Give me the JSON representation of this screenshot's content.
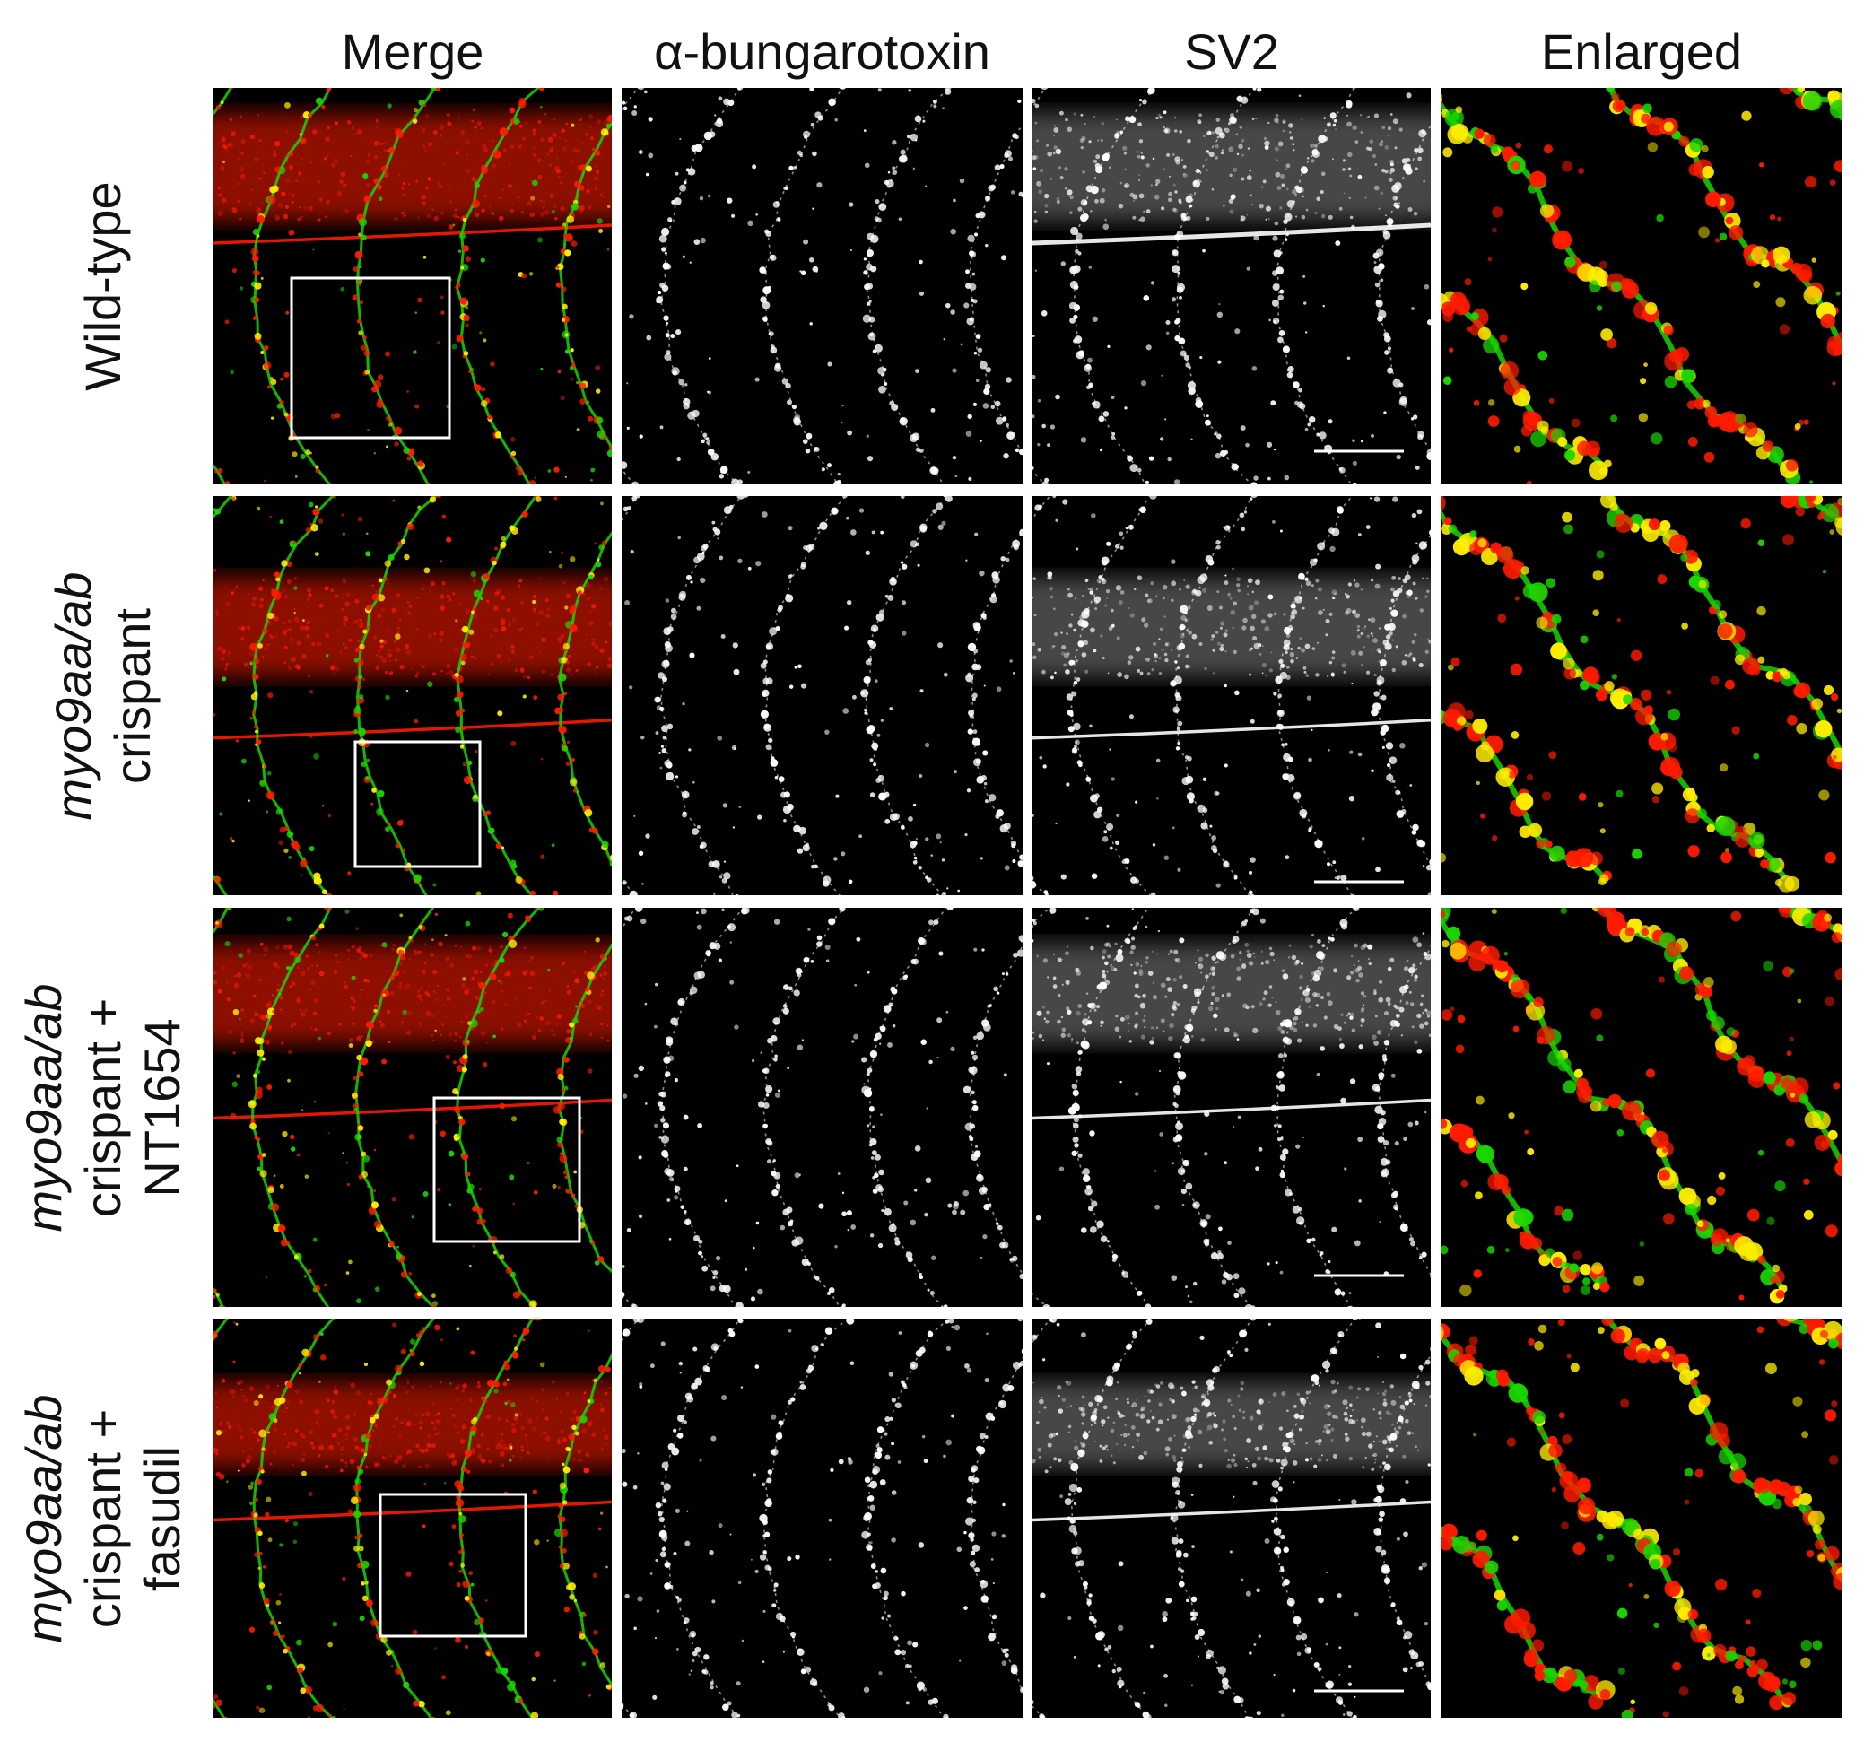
{
  "columns": [
    "Merge",
    "α-bungarotoxin",
    "SV2",
    "Enlarged"
  ],
  "rows": [
    {
      "lines": [
        {
          "parts": [
            {
              "text": "Wild-type",
              "italic": false
            }
          ]
        }
      ]
    },
    {
      "lines": [
        {
          "parts": [
            {
              "text": "myo9aa/ab",
              "italic": true
            }
          ]
        },
        {
          "parts": [
            {
              "text": "crispant",
              "italic": false
            }
          ]
        }
      ]
    },
    {
      "lines": [
        {
          "parts": [
            {
              "text": "myo9aa/ab",
              "italic": true
            }
          ]
        },
        {
          "parts": [
            {
              "text": "crispant +",
              "italic": false
            }
          ]
        },
        {
          "parts": [
            {
              "text": "NT1654",
              "italic": false
            }
          ]
        }
      ]
    },
    {
      "lines": [
        {
          "parts": [
            {
              "text": "myo9aa/ab",
              "italic": true
            }
          ]
        },
        {
          "parts": [
            {
              "text": "crispant +",
              "italic": false
            }
          ]
        },
        {
          "parts": [
            {
              "text": "fasudil",
              "italic": false
            }
          ]
        }
      ]
    }
  ],
  "colors": {
    "background": "#000000",
    "red_channel": "#ff1a00",
    "green_channel": "#19d600",
    "overlap": "#ffee00",
    "gray_channel": "#ffffff",
    "zoom_box": "#ffffff",
    "scale_bar": "#ffffff"
  }
}
